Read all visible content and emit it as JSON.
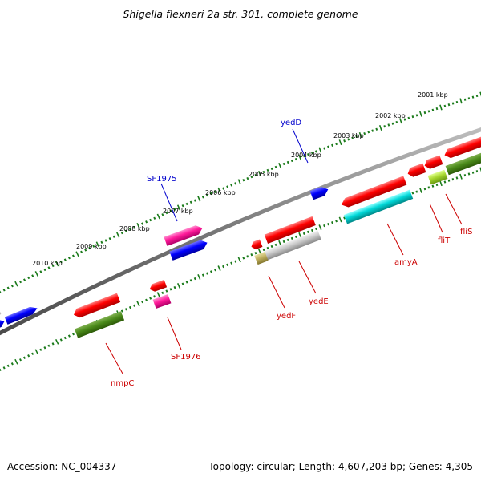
{
  "title": "Shigella flexneri 2a str. 301, complete genome",
  "accession": "Accession: NC_004337",
  "summary": "Topology: circular; Length: 4,607,203 bp; Genes: 4,305",
  "kbp_labels": [
    "2001 kbp",
    "2002 kbp",
    "2003 kbp",
    "2004 kbp",
    "2005 kbp",
    "2006 kbp",
    "2007 kbp",
    "2008 kbp",
    "2009 kbp",
    "2010 kbp"
  ],
  "gene_labels": {
    "yedD": "yedD",
    "SF1975": "SF1975",
    "SF1976": "SF1976",
    "nmpC": "nmpC",
    "yedF": "yedF",
    "yedE": "yedE",
    "amyA": "amyA",
    "fliT": "fliT",
    "fliS": "fliS"
  },
  "colors": {
    "forward_label": "#0000cc",
    "reverse_label": "#cc0000",
    "backbone": "#808080",
    "tick": "#1a7a1a"
  }
}
